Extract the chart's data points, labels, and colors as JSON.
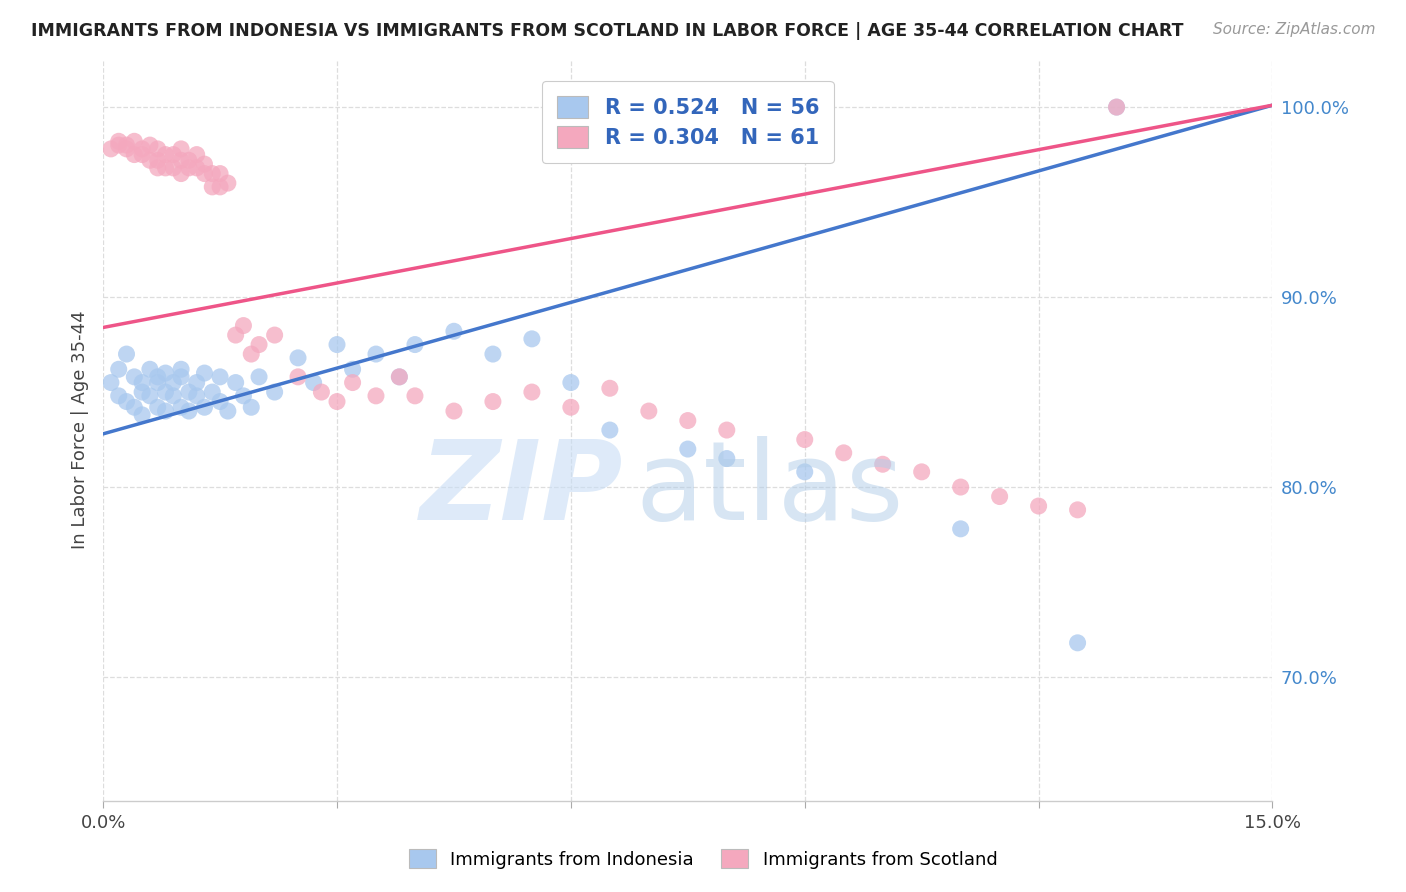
{
  "title": "IMMIGRANTS FROM INDONESIA VS IMMIGRANTS FROM SCOTLAND IN LABOR FORCE | AGE 35-44 CORRELATION CHART",
  "source": "Source: ZipAtlas.com",
  "ylabel": "In Labor Force | Age 35-44",
  "xlim": [
    0.0,
    0.15
  ],
  "ylim": [
    0.635,
    1.025
  ],
  "xticks": [
    0.0,
    0.03,
    0.06,
    0.09,
    0.12,
    0.15
  ],
  "xtick_labels": [
    "0.0%",
    "",
    "",
    "",
    "",
    "15.0%"
  ],
  "ytick_labels_right": [
    "70.0%",
    "80.0%",
    "90.0%",
    "100.0%"
  ],
  "yticks_right": [
    0.7,
    0.8,
    0.9,
    1.0
  ],
  "blue_R": 0.524,
  "blue_N": 56,
  "pink_R": 0.304,
  "pink_N": 61,
  "blue_color": "#A8C8EE",
  "pink_color": "#F4A8BE",
  "blue_line_color": "#4477CC",
  "pink_line_color": "#EE5588",
  "legend_text_color": "#3366BB",
  "right_axis_color": "#4488CC",
  "background_color": "#FFFFFF",
  "grid_color": "#DDDDDD",
  "blue_x": [
    0.001,
    0.002,
    0.002,
    0.003,
    0.003,
    0.004,
    0.004,
    0.005,
    0.005,
    0.005,
    0.006,
    0.006,
    0.007,
    0.007,
    0.007,
    0.008,
    0.008,
    0.008,
    0.009,
    0.009,
    0.01,
    0.01,
    0.01,
    0.011,
    0.011,
    0.012,
    0.012,
    0.013,
    0.013,
    0.014,
    0.015,
    0.015,
    0.016,
    0.017,
    0.018,
    0.019,
    0.02,
    0.022,
    0.025,
    0.027,
    0.03,
    0.032,
    0.035,
    0.038,
    0.04,
    0.045,
    0.05,
    0.055,
    0.06,
    0.065,
    0.075,
    0.08,
    0.09,
    0.11,
    0.125,
    0.13
  ],
  "blue_y": [
    0.855,
    0.848,
    0.862,
    0.87,
    0.845,
    0.858,
    0.842,
    0.85,
    0.855,
    0.838,
    0.848,
    0.862,
    0.855,
    0.842,
    0.858,
    0.85,
    0.84,
    0.86,
    0.848,
    0.855,
    0.842,
    0.858,
    0.862,
    0.85,
    0.84,
    0.848,
    0.855,
    0.842,
    0.86,
    0.85,
    0.845,
    0.858,
    0.84,
    0.855,
    0.848,
    0.842,
    0.858,
    0.85,
    0.868,
    0.855,
    0.875,
    0.862,
    0.87,
    0.858,
    0.875,
    0.882,
    0.87,
    0.878,
    0.855,
    0.83,
    0.82,
    0.815,
    0.808,
    0.778,
    0.718,
    1.0
  ],
  "pink_x": [
    0.001,
    0.002,
    0.002,
    0.003,
    0.003,
    0.004,
    0.004,
    0.005,
    0.005,
    0.006,
    0.006,
    0.007,
    0.007,
    0.007,
    0.008,
    0.008,
    0.009,
    0.009,
    0.01,
    0.01,
    0.01,
    0.011,
    0.011,
    0.012,
    0.012,
    0.013,
    0.013,
    0.014,
    0.014,
    0.015,
    0.015,
    0.016,
    0.017,
    0.018,
    0.019,
    0.02,
    0.022,
    0.025,
    0.028,
    0.03,
    0.032,
    0.035,
    0.038,
    0.04,
    0.045,
    0.05,
    0.055,
    0.06,
    0.065,
    0.07,
    0.075,
    0.08,
    0.09,
    0.095,
    0.1,
    0.105,
    0.11,
    0.115,
    0.12,
    0.125,
    0.13
  ],
  "pink_y": [
    0.978,
    0.98,
    0.982,
    0.98,
    0.978,
    0.982,
    0.975,
    0.978,
    0.975,
    0.98,
    0.972,
    0.978,
    0.972,
    0.968,
    0.975,
    0.968,
    0.975,
    0.968,
    0.978,
    0.972,
    0.965,
    0.972,
    0.968,
    0.975,
    0.968,
    0.965,
    0.97,
    0.965,
    0.958,
    0.965,
    0.958,
    0.96,
    0.88,
    0.885,
    0.87,
    0.875,
    0.88,
    0.858,
    0.85,
    0.845,
    0.855,
    0.848,
    0.858,
    0.848,
    0.84,
    0.845,
    0.85,
    0.842,
    0.852,
    0.84,
    0.835,
    0.83,
    0.825,
    0.818,
    0.812,
    0.808,
    0.8,
    0.795,
    0.79,
    0.788,
    1.0
  ],
  "blue_line_y0": 0.828,
  "blue_line_y1": 1.001,
  "pink_line_y0": 0.884,
  "pink_line_y1": 1.001
}
